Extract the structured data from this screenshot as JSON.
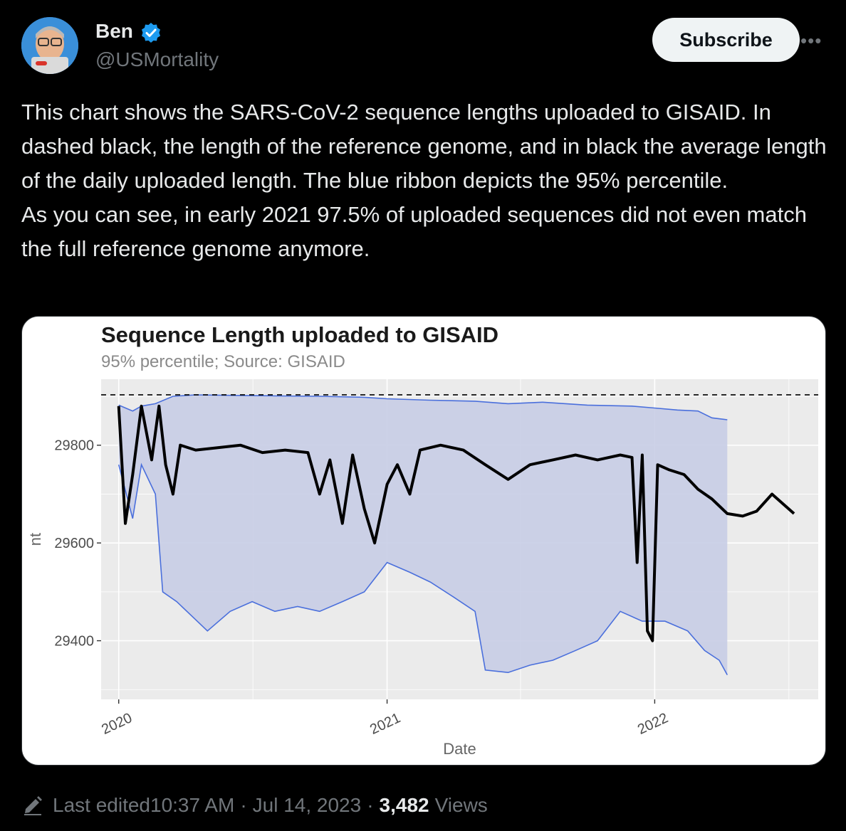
{
  "user": {
    "name": "Ben",
    "handle": "@USMortality",
    "subscribe_label": "Subscribe",
    "more_label": "•••"
  },
  "tweet": {
    "paragraph1": "This chart shows the SARS-CoV-2 sequence lengths uploaded to GISAID. In dashed black, the length of the reference genome, and in black the average length of the daily uploaded length. The blue ribbon depicts the 95% percentile.",
    "paragraph2": "As you can see, in early 2021 97.5% of uploaded sequences did not even match the full reference genome anymore."
  },
  "footer": {
    "edited_label": "Last edited",
    "time": "10:37 AM",
    "separator": "·",
    "date": "Jul 14, 2023",
    "views_count": "3,482",
    "views_label": "Views"
  },
  "colors": {
    "background": "#000000",
    "ribbon_fill": "#c8cde6",
    "ribbon_edge": "#4a6fdc",
    "mean_line": "#000000",
    "panel": "#ebebeb",
    "verified": "#1d9bf0"
  },
  "icons": {
    "verified": "verified-badge-icon",
    "edit": "pencil-icon",
    "more": "more-dots-icon"
  },
  "chart_data": {
    "type": "line",
    "title": "Sequence Length uploaded to GISAID",
    "subtitle": "95% percentile; Source: GISAID",
    "xlabel": "Date",
    "ylabel": "nt",
    "x_ticks": [
      "2020",
      "2021",
      "2022"
    ],
    "y_ticks": [
      29400,
      29600,
      29800
    ],
    "xlim": [
      "2019-12-08",
      "2022-08-12"
    ],
    "ylim": [
      29280,
      29935
    ],
    "reference_length": 29903,
    "grid": true,
    "legend": "none",
    "series": [
      {
        "style": "ribbon-upper",
        "points": [
          [
            "2020-01-01",
            29882
          ],
          [
            "2020-01-20",
            29870
          ],
          [
            "2020-02-01",
            29880
          ],
          [
            "2020-02-20",
            29885
          ],
          [
            "2020-03-15",
            29900
          ],
          [
            "2020-04-15",
            29903
          ],
          [
            "2020-06-01",
            29902
          ],
          [
            "2020-08-01",
            29901
          ],
          [
            "2020-10-01",
            29900
          ],
          [
            "2020-12-01",
            29898
          ],
          [
            "2021-01-01",
            29895
          ],
          [
            "2021-03-01",
            29892
          ],
          [
            "2021-05-01",
            29890
          ],
          [
            "2021-06-15",
            29885
          ],
          [
            "2021-08-01",
            29888
          ],
          [
            "2021-10-01",
            29882
          ],
          [
            "2021-12-01",
            29880
          ],
          [
            "2022-01-01",
            29876
          ],
          [
            "2022-02-01",
            29872
          ],
          [
            "2022-03-01",
            29870
          ],
          [
            "2022-03-20",
            29856
          ],
          [
            "2022-04-10",
            29852
          ]
        ]
      },
      {
        "style": "ribbon-lower",
        "points": [
          [
            "2020-01-01",
            29760
          ],
          [
            "2020-01-20",
            29650
          ],
          [
            "2020-02-01",
            29760
          ],
          [
            "2020-02-20",
            29700
          ],
          [
            "2020-03-01",
            29500
          ],
          [
            "2020-03-20",
            29480
          ],
          [
            "2020-04-10",
            29450
          ],
          [
            "2020-05-01",
            29420
          ],
          [
            "2020-06-01",
            29460
          ],
          [
            "2020-07-01",
            29480
          ],
          [
            "2020-08-01",
            29460
          ],
          [
            "2020-09-01",
            29470
          ],
          [
            "2020-10-01",
            29460
          ],
          [
            "2020-11-01",
            29480
          ],
          [
            "2020-12-01",
            29500
          ],
          [
            "2021-01-01",
            29560
          ],
          [
            "2021-02-01",
            29540
          ],
          [
            "2021-03-01",
            29520
          ],
          [
            "2021-04-01",
            29490
          ],
          [
            "2021-05-01",
            29460
          ],
          [
            "2021-05-15",
            29340
          ],
          [
            "2021-06-15",
            29335
          ],
          [
            "2021-07-15",
            29350
          ],
          [
            "2021-08-15",
            29360
          ],
          [
            "2021-09-15",
            29380
          ],
          [
            "2021-10-15",
            29400
          ],
          [
            "2021-11-15",
            29460
          ],
          [
            "2021-12-15",
            29440
          ],
          [
            "2022-01-15",
            29440
          ],
          [
            "2022-02-15",
            29420
          ],
          [
            "2022-03-10",
            29380
          ],
          [
            "2022-03-30",
            29360
          ],
          [
            "2022-04-10",
            29330
          ]
        ]
      },
      {
        "style": "mean-line",
        "points": [
          [
            "2020-01-01",
            29880
          ],
          [
            "2020-01-10",
            29640
          ],
          [
            "2020-01-20",
            29740
          ],
          [
            "2020-02-01",
            29880
          ],
          [
            "2020-02-15",
            29770
          ],
          [
            "2020-02-25",
            29880
          ],
          [
            "2020-03-05",
            29760
          ],
          [
            "2020-03-15",
            29700
          ],
          [
            "2020-03-25",
            29800
          ],
          [
            "2020-04-15",
            29790
          ],
          [
            "2020-05-15",
            29795
          ],
          [
            "2020-06-15",
            29800
          ],
          [
            "2020-07-15",
            29785
          ],
          [
            "2020-08-15",
            29790
          ],
          [
            "2020-09-15",
            29785
          ],
          [
            "2020-10-01",
            29700
          ],
          [
            "2020-10-15",
            29770
          ],
          [
            "2020-11-01",
            29640
          ],
          [
            "2020-11-15",
            29780
          ],
          [
            "2020-12-01",
            29670
          ],
          [
            "2020-12-15",
            29600
          ],
          [
            "2021-01-01",
            29720
          ],
          [
            "2021-01-15",
            29760
          ],
          [
            "2021-02-01",
            29700
          ],
          [
            "2021-02-15",
            29790
          ],
          [
            "2021-03-15",
            29800
          ],
          [
            "2021-04-15",
            29790
          ],
          [
            "2021-05-15",
            29760
          ],
          [
            "2021-06-15",
            29730
          ],
          [
            "2021-07-15",
            29760
          ],
          [
            "2021-08-15",
            29770
          ],
          [
            "2021-09-15",
            29780
          ],
          [
            "2021-10-15",
            29770
          ],
          [
            "2021-11-15",
            29780
          ],
          [
            "2021-12-01",
            29775
          ],
          [
            "2021-12-08",
            29560
          ],
          [
            "2021-12-15",
            29780
          ],
          [
            "2021-12-22",
            29420
          ],
          [
            "2021-12-29",
            29400
          ],
          [
            "2022-01-05",
            29760
          ],
          [
            "2022-01-20",
            29750
          ],
          [
            "2022-02-10",
            29740
          ],
          [
            "2022-03-01",
            29710
          ],
          [
            "2022-03-20",
            29690
          ],
          [
            "2022-04-10",
            29660
          ],
          [
            "2022-05-01",
            29655
          ],
          [
            "2022-05-20",
            29665
          ],
          [
            "2022-06-10",
            29700
          ],
          [
            "2022-06-25",
            29680
          ],
          [
            "2022-07-10",
            29660
          ]
        ]
      }
    ]
  }
}
